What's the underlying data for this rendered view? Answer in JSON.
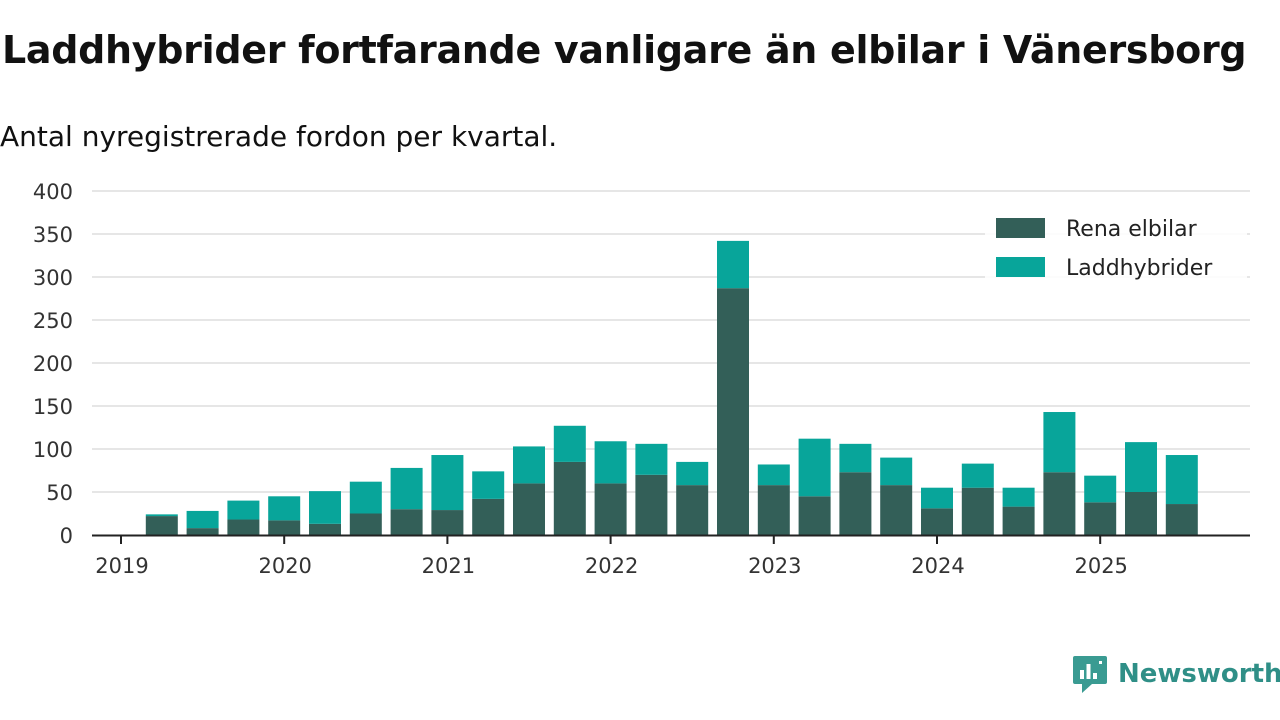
{
  "title": "Laddhybrider fortfarande vanligare än elbilar i Vänersborg",
  "subtitle": "Antal nyregistrerade fordon per kvartal.",
  "brand": {
    "name": "Newsworthy",
    "icon": "newsworthy-logo-icon"
  },
  "colors": {
    "elbilar": "#335f58",
    "laddhybrider": "#08a59a",
    "grid": "#dddddd",
    "axis": "#222222"
  },
  "chart_data": {
    "type": "bar",
    "stacked": true,
    "title": "Laddhybrider fortfarande vanligare än elbilar i Vänersborg",
    "subtitle": "Antal nyregistrerade fordon per kvartal.",
    "xlabel": "",
    "ylabel": "",
    "ylim": [
      0,
      400
    ],
    "yticks": [
      0,
      50,
      100,
      150,
      200,
      250,
      300,
      350,
      400
    ],
    "xtick_labels": [
      "2019",
      "2020",
      "2021",
      "2022",
      "2023",
      "2024",
      "2025"
    ],
    "legend_position": "top-right",
    "categories": [
      "2019 Q2",
      "2019 Q3",
      "2019 Q4",
      "2020 Q1",
      "2020 Q2",
      "2020 Q3",
      "2020 Q4",
      "2021 Q1",
      "2021 Q2",
      "2021 Q3",
      "2021 Q4",
      "2022 Q1",
      "2022 Q2",
      "2022 Q3",
      "2022 Q4",
      "2023 Q1",
      "2023 Q2",
      "2023 Q3",
      "2023 Q4",
      "2024 Q1",
      "2024 Q2",
      "2024 Q3",
      "2024 Q4",
      "2025 Q1",
      "2025 Q2",
      "2025 Q3"
    ],
    "series": [
      {
        "name": "Rena elbilar",
        "values": [
          22,
          8,
          18,
          17,
          13,
          25,
          30,
          29,
          42,
          60,
          85,
          60,
          70,
          58,
          287,
          58,
          45,
          73,
          58,
          31,
          55,
          33,
          73,
          38,
          50,
          36
        ]
      },
      {
        "name": "Laddhybrider",
        "values": [
          2,
          20,
          22,
          28,
          38,
          37,
          48,
          64,
          32,
          43,
          42,
          49,
          36,
          27,
          55,
          24,
          67,
          33,
          32,
          24,
          28,
          22,
          70,
          31,
          58,
          57
        ]
      }
    ]
  }
}
